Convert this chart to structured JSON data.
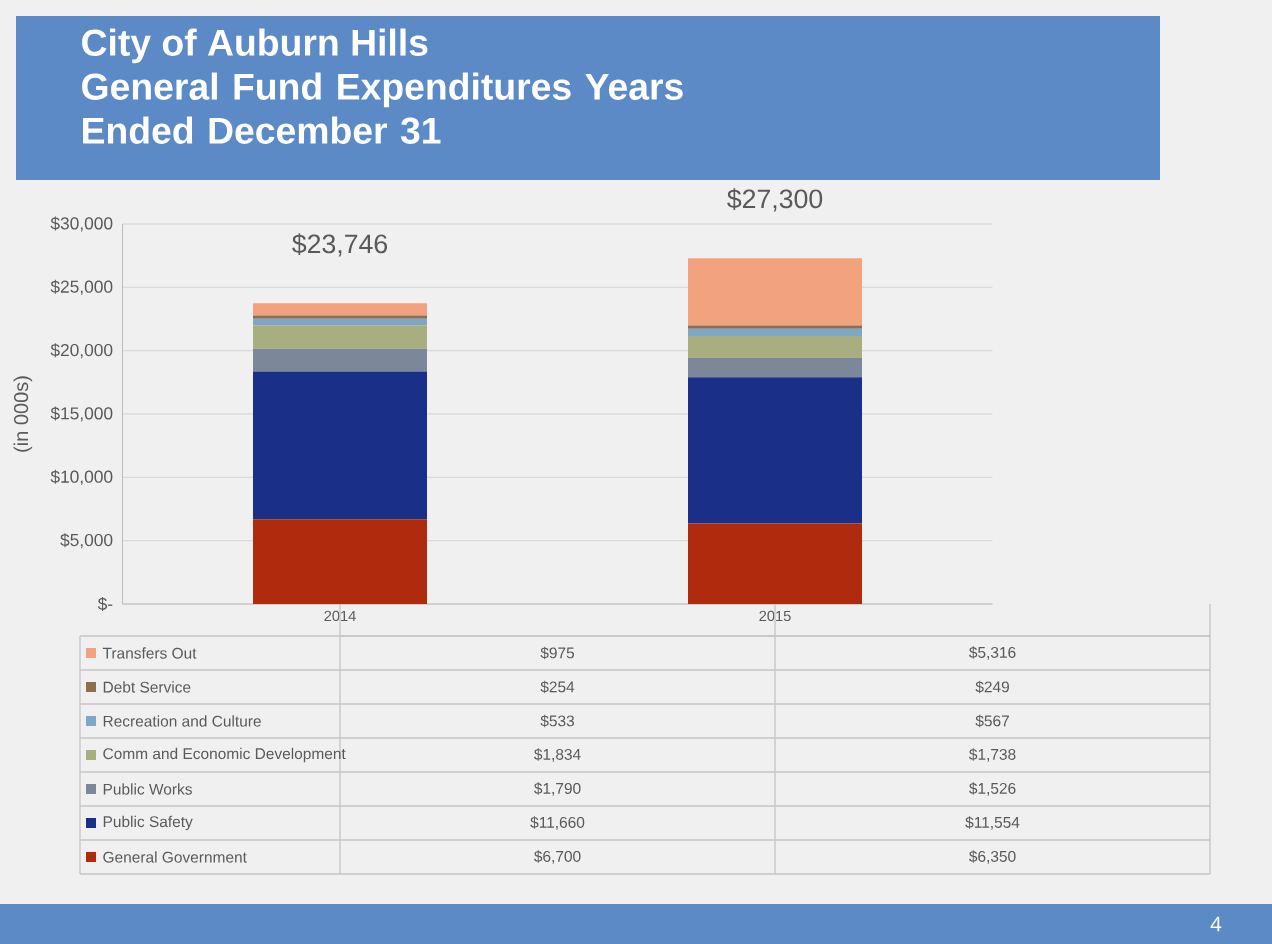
{
  "chart_data": {
    "type": "bar",
    "title": "City of Auburn Hills",
    "subtitle": "General Fund Expenditures Years Ended December 31",
    "ylabel": "(in 000s)",
    "categories": [
      "2014",
      "2015"
    ],
    "stacked": true,
    "grid": "y",
    "legend": "bottom",
    "ylim": [
      0,
      30000
    ],
    "yticks": [
      {
        "value": 0,
        "label": "$-"
      },
      {
        "value": 5000,
        "label": "$5,000"
      },
      {
        "value": 10000,
        "label": "$10,000"
      },
      {
        "value": 15000,
        "label": "$15,000"
      },
      {
        "value": 20000,
        "label": "$20,000"
      },
      {
        "value": 25000,
        "label": "$25,000"
      },
      {
        "value": 30000,
        "label": "$30,000"
      }
    ],
    "totals": [
      "$23,746",
      "$27,300"
    ],
    "annotations": [
      "4"
    ],
    "series": [
      {
        "name": "General Government",
        "color": "#b02a0e",
        "values": [
          6700,
          6350
        ],
        "value_labels": [
          "$6,700",
          "$6,350"
        ]
      },
      {
        "name": "Public Safety",
        "color": "#1a2f87",
        "values": [
          11660,
          11554
        ],
        "value_labels": [
          "$11,660",
          "$11,554"
        ]
      },
      {
        "name": "Public Works",
        "color": "#7c8799",
        "values": [
          1790,
          1526
        ],
        "value_labels": [
          "$1,790",
          "$1,526"
        ]
      },
      {
        "name": "Comm and Economic Development",
        "color": "#a9ae80",
        "values": [
          1834,
          1738
        ],
        "value_labels": [
          "$1,834",
          "$1,738"
        ]
      },
      {
        "name": "Recreation and Culture",
        "color": "#7ea6c5",
        "values": [
          533,
          567
        ],
        "value_labels": [
          "$533",
          "$567"
        ]
      },
      {
        "name": "Debt Service",
        "color": "#8b6f4e",
        "values": [
          254,
          249
        ],
        "value_labels": [
          "$254",
          "$249"
        ]
      },
      {
        "name": "Transfers Out",
        "color": "#f2a27c",
        "values": [
          975,
          5316
        ],
        "value_labels": [
          "$975",
          "$5,316"
        ]
      }
    ]
  }
}
